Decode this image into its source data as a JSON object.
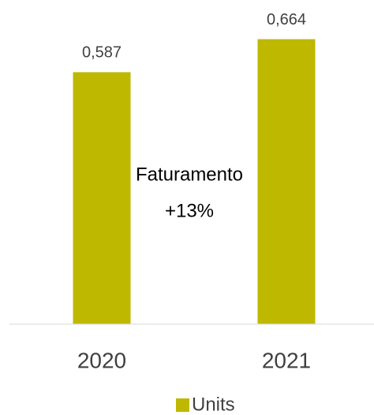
{
  "chart_data": {
    "type": "bar",
    "categories": [
      "2020",
      "2021"
    ],
    "series": [
      {
        "name": "Units",
        "color": "#bfb800",
        "values": [
          0.587,
          0.664
        ],
        "value_labels": [
          "0,587",
          "0,664"
        ]
      }
    ],
    "ylim": [
      0,
      0.7
    ],
    "annotation": [
      "Faturamento",
      "+13%"
    ],
    "legend": "bottom"
  }
}
